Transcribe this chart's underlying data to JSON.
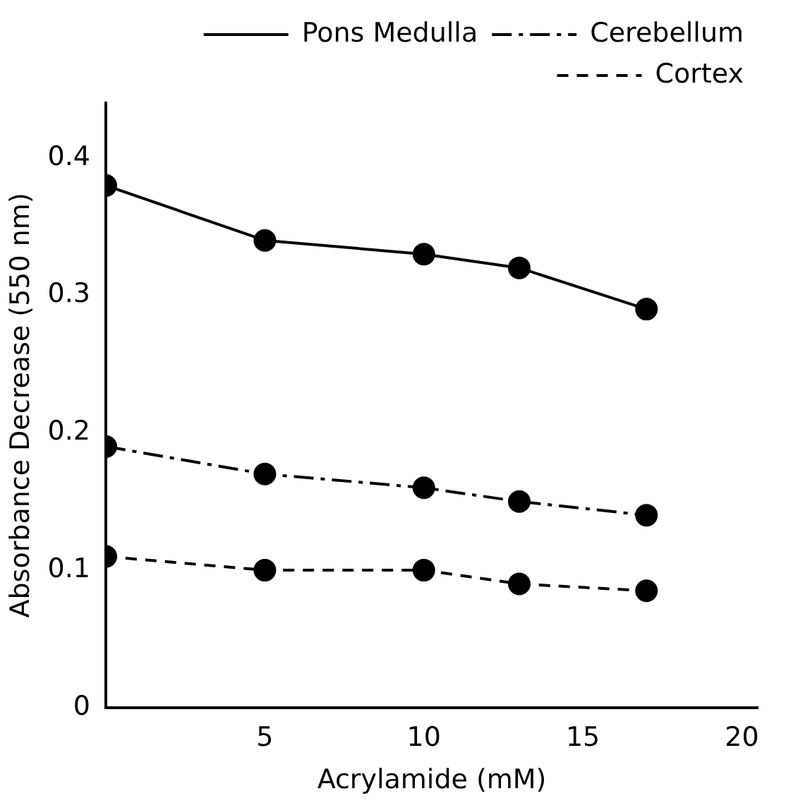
{
  "chart_data": {
    "type": "line",
    "xlabel": "Acrylamide (mM)",
    "ylabel": "Absorbance Decrease (550 nm)",
    "x": [
      0,
      5,
      10,
      13,
      17
    ],
    "series": [
      {
        "name": "Pons Medulla",
        "color": "#000000",
        "line_style": "solid",
        "values": [
          0.38,
          0.34,
          0.33,
          0.32,
          0.29
        ]
      },
      {
        "name": "Cerebellum",
        "color": "#000000",
        "line_style": "dashdot",
        "values": [
          0.19,
          0.17,
          0.16,
          0.15,
          0.14
        ]
      },
      {
        "name": "Cortex",
        "color": "#000000",
        "line_style": "dashed",
        "values": [
          0.11,
          0.1,
          0.1,
          0.09,
          0.085
        ]
      }
    ],
    "xlim": [
      0,
      20.5
    ],
    "xticks": [
      5,
      10,
      15,
      20
    ],
    "ylim": [
      0,
      0.44
    ],
    "yticks": [
      0,
      0.1,
      0.2,
      0.3,
      0.4
    ],
    "grid": false,
    "legend": "top right",
    "marker": "circle"
  }
}
